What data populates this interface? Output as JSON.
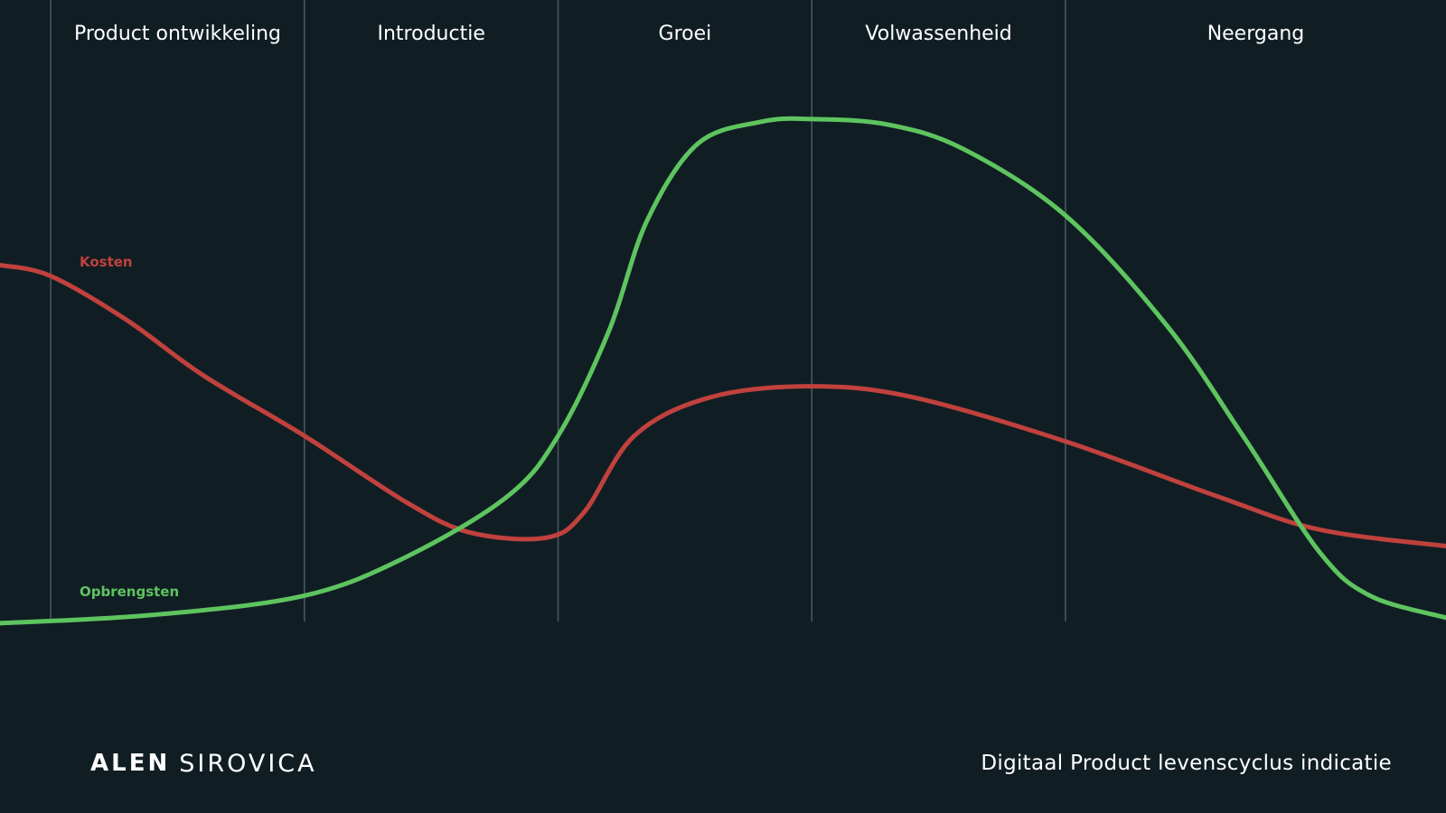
{
  "chart_data": {
    "type": "line",
    "title": "",
    "phases": [
      "Product ontwikkeling",
      "Introductie",
      "Groei",
      "Volwassenheid",
      "Neergang"
    ],
    "phase_boundaries": [
      0.2,
      1.2,
      2.2,
      3.2,
      4.2
    ],
    "x_range": [
      0,
      5.7
    ],
    "y_range": [
      0,
      100
    ],
    "grid": false,
    "axes_visible": false,
    "series": [
      {
        "name": "Kosten",
        "color": "#c0413d",
        "x": [
          0,
          0.2,
          0.5,
          0.8,
          1.2,
          1.6,
          1.85,
          2.15,
          2.3,
          2.5,
          2.8,
          3.2,
          3.6,
          4.2,
          4.8,
          5.2,
          5.7
        ],
        "y": [
          66,
          64,
          56,
          46,
          35,
          23,
          17.5,
          16.5,
          21,
          35,
          42,
          44,
          42,
          34,
          24,
          18,
          15
        ]
      },
      {
        "name": "Opbrengsten",
        "color": "#5ec45f",
        "x": [
          0,
          0.6,
          1.2,
          1.6,
          2.0,
          2.2,
          2.4,
          2.55,
          2.75,
          3.0,
          3.2,
          3.5,
          3.8,
          4.2,
          4.6,
          4.9,
          5.2,
          5.4,
          5.7
        ],
        "y": [
          1,
          2.5,
          6,
          13,
          24,
          35,
          54,
          74,
          88,
          92,
          92.5,
          91.5,
          87,
          75,
          55,
          35,
          14,
          6,
          2
        ]
      }
    ]
  },
  "branding": {
    "first": "ALEN",
    "last": "SIROVICA",
    "accent_color": "#2f86e0"
  },
  "caption": "Digitaal Product levenscyclus indicatie",
  "colors": {
    "background": "#101e24",
    "divider": "#4b5a61",
    "text": "#ffffff"
  }
}
